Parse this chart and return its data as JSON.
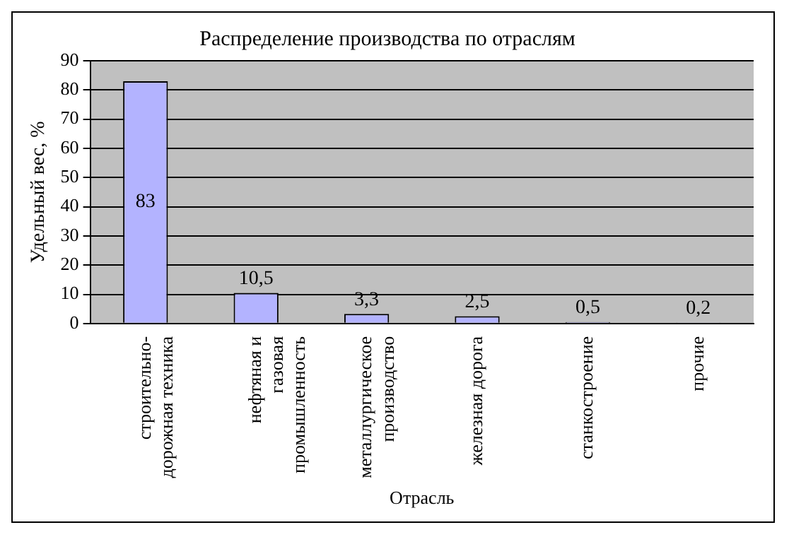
{
  "chart_data": {
    "type": "bar",
    "title": "Распределение производства по отраслям",
    "xlabel": "Отрасль",
    "ylabel": "Удельный вес, %",
    "categories": [
      "строительно-дорожная техника",
      "нефтяная и газовая промышленность",
      "металлургическое производство",
      "железная дорога",
      "станкостроение",
      "прочие"
    ],
    "values": [
      83,
      10.5,
      3.3,
      2.5,
      0.5,
      0.2
    ],
    "value_labels": [
      "83",
      "10,5",
      "3,3",
      "2,5",
      "0,5",
      "0,2"
    ],
    "color": "#b3b3ff",
    "ylim": [
      0,
      90
    ],
    "yticks": [
      0,
      10,
      20,
      30,
      40,
      50,
      60,
      70,
      80,
      90
    ],
    "grid": "y",
    "legend": false
  }
}
